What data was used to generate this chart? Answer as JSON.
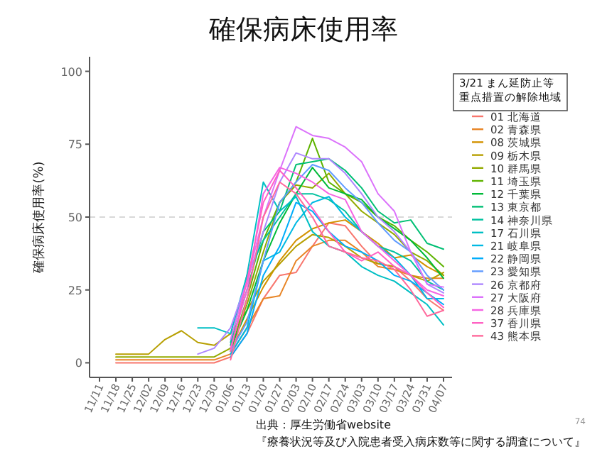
{
  "chart_data": {
    "type": "line",
    "title": "確保病床使用率",
    "ylabel": "確保病床使用率(%)",
    "legend_title": "3/21 まん延防止等重点措置の解除地域",
    "legend": "right",
    "grid": false,
    "marker": "none",
    "line_style": "solid",
    "annotations": [
      "出典：厚生労働省website",
      "『療養状況等及び入院患者受入病床数等に関する調査について』",
      "74"
    ],
    "categories": [
      "11/11",
      "11/18",
      "11/25",
      "12/02",
      "12/09",
      "12/16",
      "12/23",
      "12/30",
      "01/06",
      "01/13",
      "01/20",
      "01/27",
      "02/03",
      "02/10",
      "02/17",
      "02/24",
      "03/03",
      "03/10",
      "03/17",
      "03/24",
      "03/31",
      "04/07"
    ],
    "ylim": [
      -5,
      105
    ],
    "yticks": [
      0,
      25,
      50,
      75,
      100
    ],
    "ref_lines": [
      {
        "axis": "y",
        "value": 50,
        "color": "#cccccc",
        "line_style": "dashed"
      }
    ],
    "series": [
      {
        "name": "01 北海道",
        "color": "#f8766d",
        "values": [
          null,
          0,
          0,
          0,
          0,
          0,
          0,
          0,
          2,
          10,
          22,
          30,
          31,
          40,
          48,
          47,
          40,
          34,
          33,
          28,
          22,
          18
        ]
      },
      {
        "name": "02 青森県",
        "color": "#e88526",
        "values": [
          null,
          1,
          1,
          1,
          1,
          1,
          1,
          1,
          3,
          12,
          22,
          23,
          35,
          40,
          42,
          42,
          38,
          33,
          32,
          30,
          29,
          29
        ]
      },
      {
        "name": "08 茨城県",
        "color": "#d39200",
        "values": [
          null,
          null,
          null,
          null,
          null,
          null,
          null,
          null,
          4,
          15,
          26,
          35,
          42,
          46,
          48,
          49,
          45,
          41,
          36,
          37,
          33,
          30
        ]
      },
      {
        "name": "09 栃木県",
        "color": "#b79f00",
        "values": [
          null,
          3,
          3,
          3,
          8,
          11,
          7,
          6,
          10,
          18,
          28,
          34,
          40,
          44,
          43,
          40,
          36,
          34,
          33,
          30,
          28,
          31
        ]
      },
      {
        "name": "10 群馬県",
        "color": "#93aa00",
        "values": [
          null,
          2,
          2,
          2,
          2,
          2,
          2,
          2,
          5,
          20,
          38,
          55,
          61,
          60,
          65,
          58,
          52,
          48,
          44,
          38,
          35,
          30
        ]
      },
      {
        "name": "11 埼玉県",
        "color": "#5eb300",
        "values": [
          null,
          null,
          null,
          null,
          null,
          null,
          null,
          null,
          4,
          22,
          42,
          55,
          62,
          77,
          62,
          58,
          55,
          50,
          47,
          42,
          38,
          33
        ]
      },
      {
        "name": "12 千葉県",
        "color": "#00ba38",
        "values": [
          null,
          null,
          null,
          null,
          null,
          null,
          null,
          null,
          5,
          18,
          35,
          48,
          58,
          67,
          60,
          58,
          56,
          50,
          46,
          42,
          36,
          29
        ]
      },
      {
        "name": "13 東京都",
        "color": "#00bf74",
        "values": [
          null,
          null,
          null,
          null,
          null,
          null,
          null,
          null,
          6,
          25,
          45,
          52,
          68,
          69,
          70,
          66,
          60,
          52,
          48,
          49,
          41,
          39
        ]
      },
      {
        "name": "14 神奈川県",
        "color": "#00c19f",
        "values": [
          null,
          null,
          null,
          null,
          null,
          null,
          null,
          null,
          7,
          30,
          42,
          50,
          58,
          58,
          56,
          52,
          45,
          40,
          38,
          35,
          28,
          25
        ]
      },
      {
        "name": "17 石川県",
        "color": "#00bfc4",
        "values": [
          null,
          null,
          null,
          null,
          null,
          null,
          12,
          12,
          10,
          30,
          62,
          52,
          57,
          45,
          40,
          38,
          33,
          30,
          28,
          24,
          20,
          13
        ]
      },
      {
        "name": "21 岐阜県",
        "color": "#00b9e3",
        "values": [
          null,
          null,
          null,
          null,
          null,
          null,
          null,
          null,
          3,
          12,
          35,
          38,
          48,
          55,
          57,
          50,
          45,
          40,
          36,
          30,
          22,
          22
        ]
      },
      {
        "name": "22 静岡県",
        "color": "#00adfa",
        "values": [
          null,
          null,
          null,
          null,
          null,
          null,
          null,
          null,
          2,
          10,
          30,
          40,
          55,
          52,
          45,
          40,
          38,
          35,
          30,
          28,
          24,
          20
        ]
      },
      {
        "name": "23 愛知県",
        "color": "#619cff",
        "values": [
          null,
          null,
          null,
          null,
          null,
          null,
          null,
          null,
          4,
          14,
          35,
          55,
          62,
          68,
          66,
          60,
          55,
          48,
          42,
          38,
          30,
          25
        ]
      },
      {
        "name": "26 京都府",
        "color": "#ae87ff",
        "values": [
          null,
          null,
          null,
          null,
          null,
          null,
          3,
          5,
          12,
          28,
          45,
          62,
          72,
          70,
          70,
          65,
          58,
          50,
          45,
          38,
          27,
          24
        ]
      },
      {
        "name": "27 大阪府",
        "color": "#db72fb",
        "values": [
          null,
          null,
          null,
          null,
          null,
          null,
          null,
          null,
          8,
          28,
          50,
          66,
          81,
          78,
          77,
          74,
          69,
          58,
          52,
          38,
          27,
          26
        ]
      },
      {
        "name": "28 兵庫県",
        "color": "#f564e3",
        "values": [
          null,
          null,
          null,
          null,
          null,
          null,
          null,
          null,
          5,
          25,
          58,
          67,
          65,
          62,
          58,
          56,
          45,
          40,
          35,
          30,
          25,
          23
        ]
      },
      {
        "name": "37 香川県",
        "color": "#ff61c3",
        "values": [
          null,
          null,
          null,
          null,
          null,
          null,
          null,
          null,
          4,
          28,
          55,
          66,
          60,
          53,
          45,
          38,
          35,
          38,
          33,
          30,
          24,
          19
        ]
      },
      {
        "name": "43 熊本県",
        "color": "#ff699c",
        "values": [
          null,
          null,
          null,
          null,
          null,
          null,
          null,
          null,
          1,
          22,
          50,
          62,
          58,
          50,
          40,
          38,
          36,
          35,
          32,
          25,
          16,
          18
        ]
      }
    ]
  }
}
